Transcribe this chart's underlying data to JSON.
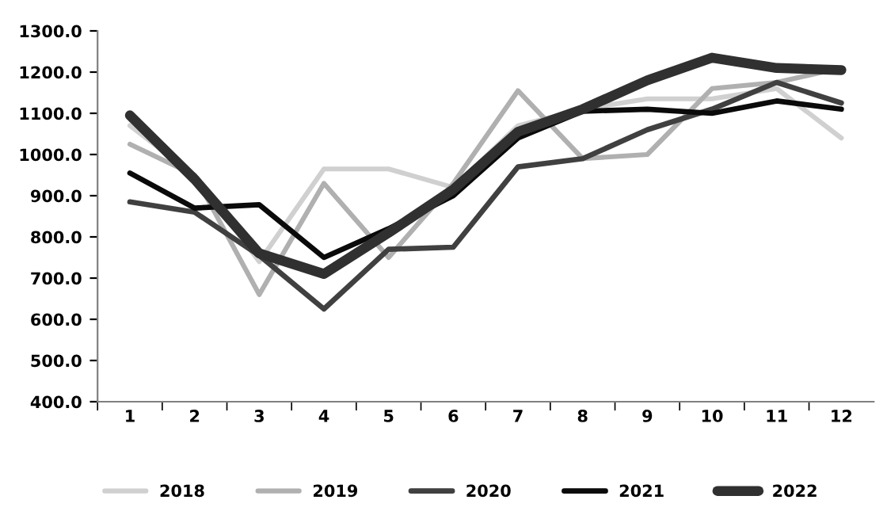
{
  "chart_data": {
    "type": "line",
    "categories": [
      "1",
      "2",
      "3",
      "4",
      "5",
      "6",
      "7",
      "8",
      "9",
      "10",
      "11",
      "12"
    ],
    "series": [
      {
        "name": "2018",
        "color": "#d0d0d0",
        "values": [
          1070,
          950,
          740,
          965,
          965,
          920,
          1070,
          1110,
          1135,
          1135,
          1160,
          1040
        ]
      },
      {
        "name": "2019",
        "color": "#b0b0b0",
        "values": [
          1025,
          950,
          660,
          930,
          750,
          930,
          1155,
          990,
          1000,
          1160,
          1175,
          1210
        ]
      },
      {
        "name": "2020",
        "color": "#404040",
        "values": [
          885,
          860,
          755,
          625,
          770,
          775,
          970,
          990,
          1060,
          1110,
          1175,
          1125
        ]
      },
      {
        "name": "2021",
        "color": "#0a0a0a",
        "values": [
          955,
          870,
          878,
          750,
          820,
          900,
          1040,
          1105,
          1110,
          1100,
          1130,
          1110
        ]
      },
      {
        "name": "2022",
        "color": "#303030",
        "values": [
          1095,
          940,
          760,
          710,
          810,
          915,
          1055,
          1110,
          1180,
          1235,
          1210,
          1205
        ]
      }
    ],
    "ylim": [
      400,
      1300
    ],
    "yticks": [
      {
        "value": 400,
        "label": "400.0"
      },
      {
        "value": 500,
        "label": "500.0"
      },
      {
        "value": 600,
        "label": "600.0"
      },
      {
        "value": 700,
        "label": "700.0"
      },
      {
        "value": 800,
        "label": "800.0"
      },
      {
        "value": 900,
        "label": "900.0"
      },
      {
        "value": 1000,
        "label": "1000.0"
      },
      {
        "value": 1100,
        "label": "1100.0"
      },
      {
        "value": 1200,
        "label": "1200.0"
      },
      {
        "value": 1300,
        "label": "1300.0"
      }
    ],
    "grid": false,
    "legend": "bottom",
    "marker": "none",
    "line_style": "solid"
  }
}
